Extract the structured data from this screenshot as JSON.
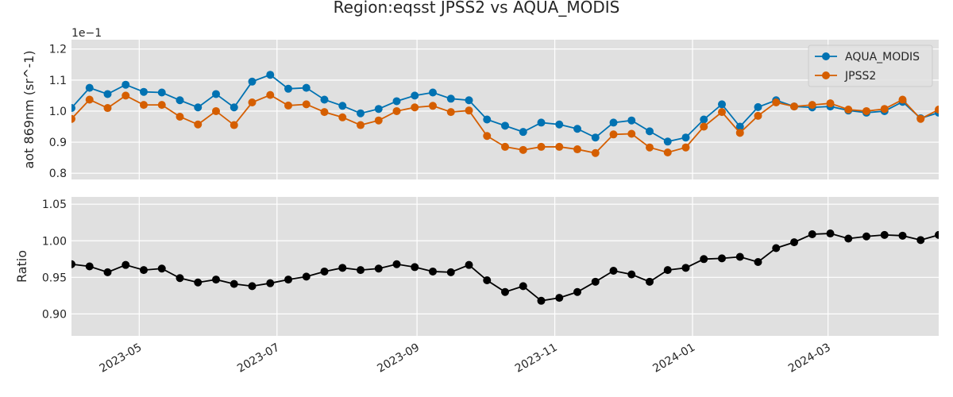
{
  "chart_data": {
    "title": "Region:eqsst JPSS2 vs AQUA_MODIS",
    "type": "line",
    "x_dates": [
      "2023-04-01",
      "2023-04-09",
      "2023-04-17",
      "2023-04-25",
      "2023-05-03",
      "2023-05-11",
      "2023-05-19",
      "2023-05-27",
      "2023-06-04",
      "2023-06-12",
      "2023-06-20",
      "2023-06-28",
      "2023-07-06",
      "2023-07-14",
      "2023-07-22",
      "2023-07-30",
      "2023-08-07",
      "2023-08-15",
      "2023-08-23",
      "2023-08-31",
      "2023-09-08",
      "2023-09-16",
      "2023-09-24",
      "2023-10-02",
      "2023-10-10",
      "2023-10-18",
      "2023-10-26",
      "2023-11-03",
      "2023-11-11",
      "2023-11-19",
      "2023-11-27",
      "2023-12-05",
      "2023-12-13",
      "2023-12-21",
      "2023-12-29",
      "2024-01-06",
      "2024-01-14",
      "2024-01-22",
      "2024-01-30",
      "2024-02-07",
      "2024-02-15",
      "2024-02-23",
      "2024-03-02",
      "2024-03-10",
      "2024-03-18",
      "2024-03-26",
      "2024-04-03",
      "2024-04-11",
      "2024-04-19"
    ],
    "x_range": [
      "2023-04-01",
      "2024-04-19"
    ],
    "x_ticks": [
      "2023-05-01",
      "2023-07-01",
      "2023-09-01",
      "2023-11-01",
      "2024-01-01",
      "2024-03-01"
    ],
    "x_tick_labels": [
      "2023-05",
      "2023-07",
      "2023-09",
      "2023-11",
      "2024-01",
      "2024-03"
    ],
    "top": {
      "ylabel": "aot 869nm (sr^-1)",
      "offset_text": "1e−1",
      "ylim": [
        0.78,
        1.23
      ],
      "yticks": [
        0.8,
        0.9,
        1.0,
        1.1,
        1.2
      ],
      "ytick_labels": [
        "0.8",
        "0.9",
        "1.0",
        "1.1",
        "1.2"
      ],
      "legend_location": "upper right",
      "series": [
        {
          "name": "AQUA_MODIS",
          "color": "#0072b2",
          "values": [
            1.01,
            1.075,
            1.055,
            1.085,
            1.062,
            1.06,
            1.035,
            1.012,
            1.055,
            1.012,
            1.095,
            1.117,
            1.072,
            1.075,
            1.037,
            1.017,
            0.993,
            1.007,
            1.032,
            1.05,
            1.06,
            1.04,
            1.035,
            0.973,
            0.953,
            0.933,
            0.963,
            0.957,
            0.943,
            0.915,
            0.963,
            0.97,
            0.935,
            0.902,
            0.915,
            0.973,
            1.022,
            0.95,
            1.013,
            1.035,
            1.015,
            1.012,
            1.015,
            1.002,
            0.995,
            1.0,
            1.03,
            0.977,
            0.995
          ]
        },
        {
          "name": "JPSS2",
          "color": "#d55e00",
          "values": [
            0.975,
            1.037,
            1.01,
            1.05,
            1.02,
            1.02,
            0.982,
            0.957,
            1.0,
            0.955,
            1.028,
            1.052,
            1.018,
            1.022,
            0.997,
            0.98,
            0.955,
            0.97,
            1.0,
            1.012,
            1.017,
            0.997,
            1.002,
            0.92,
            0.885,
            0.875,
            0.885,
            0.885,
            0.877,
            0.865,
            0.925,
            0.927,
            0.883,
            0.867,
            0.883,
            0.95,
            0.997,
            0.93,
            0.985,
            1.028,
            1.015,
            1.02,
            1.025,
            1.005,
            1.0,
            1.007,
            1.037,
            0.975,
            1.005
          ]
        }
      ]
    },
    "bottom": {
      "ylabel": "Ratio",
      "ylim": [
        0.87,
        1.06
      ],
      "yticks": [
        0.9,
        0.95,
        1.0,
        1.05
      ],
      "ytick_labels": [
        "0.90",
        "0.95",
        "1.00",
        "1.05"
      ],
      "series": [
        {
          "name": "",
          "color": "#000000",
          "values": [
            0.968,
            0.965,
            0.957,
            0.967,
            0.96,
            0.962,
            0.949,
            0.943,
            0.947,
            0.941,
            0.938,
            0.942,
            0.947,
            0.951,
            0.958,
            0.963,
            0.96,
            0.962,
            0.968,
            0.964,
            0.958,
            0.957,
            0.967,
            0.946,
            0.93,
            0.938,
            0.918,
            0.922,
            0.93,
            0.944,
            0.959,
            0.954,
            0.944,
            0.96,
            0.963,
            0.975,
            0.976,
            0.978,
            0.971,
            0.99,
            0.998,
            1.009,
            1.01,
            1.003,
            1.006,
            1.008,
            1.007,
            1.001,
            1.008
          ]
        }
      ]
    },
    "grid": true,
    "background": "#e0e0e0"
  }
}
